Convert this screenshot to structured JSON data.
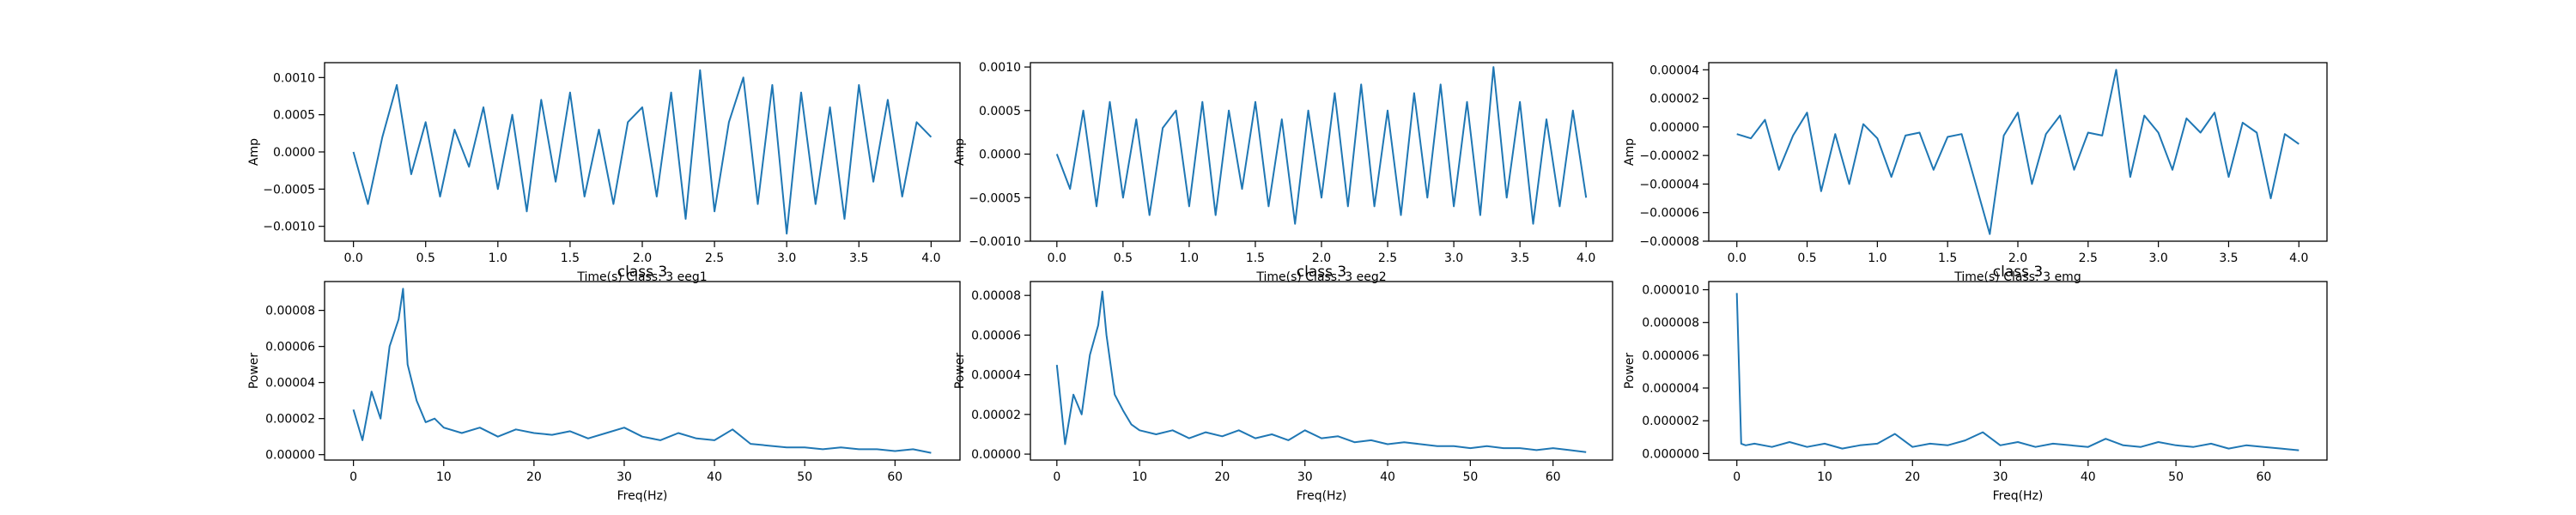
{
  "chart_data": [
    {
      "type": "line",
      "panel": "eeg1-time",
      "title": "",
      "xlabel": "Time(s) Class: 3 eeg1",
      "ylabel": "Amp",
      "xlim": [
        -0.2,
        4.2
      ],
      "ylim": [
        -0.0012,
        0.0012
      ],
      "xticks": [
        0,
        0.5,
        1,
        1.5,
        2,
        2.5,
        3,
        3.5,
        4
      ],
      "xticklabels": [
        "0.0",
        "0.5",
        "1.0",
        "1.5",
        "2.0",
        "2.5",
        "3.0",
        "3.5",
        "4.0"
      ],
      "yticks": [
        -0.001,
        -0.0005,
        0,
        0.0005,
        0.001
      ],
      "yticklabels": [
        "−0.0010",
        "−0.0005",
        "0.0000",
        "0.0005",
        "0.0010"
      ],
      "color": "#1f77b4",
      "series": [
        {
          "x": [
            0,
            0.1,
            0.2,
            0.3,
            0.4,
            0.5,
            0.6,
            0.7,
            0.8,
            0.9,
            1.0,
            1.1,
            1.2,
            1.3,
            1.4,
            1.5,
            1.6,
            1.7,
            1.8,
            1.9,
            2.0,
            2.1,
            2.2,
            2.3,
            2.4,
            2.5,
            2.6,
            2.7,
            2.8,
            2.9,
            3.0,
            3.1,
            3.2,
            3.3,
            3.4,
            3.5,
            3.6,
            3.7,
            3.8,
            3.9,
            4.0
          ],
          "y": [
            0.0,
            -0.0007,
            0.0002,
            0.0009,
            -0.0003,
            0.0004,
            -0.0006,
            0.0003,
            -0.0002,
            0.0006,
            -0.0005,
            0.0005,
            -0.0008,
            0.0007,
            -0.0004,
            0.0008,
            -0.0006,
            0.0003,
            -0.0007,
            0.0004,
            0.0006,
            -0.0006,
            0.0008,
            -0.0009,
            0.0011,
            -0.0008,
            0.0004,
            0.001,
            -0.0007,
            0.0009,
            -0.0011,
            0.0008,
            -0.0007,
            0.0006,
            -0.0009,
            0.0009,
            -0.0004,
            0.0007,
            -0.0006,
            0.0004,
            0.0002
          ]
        }
      ]
    },
    {
      "type": "line",
      "panel": "eeg2-time",
      "title": "",
      "xlabel": "Time(s) Class: 3 eeg2",
      "ylabel": "Amp",
      "xlim": [
        -0.2,
        4.2
      ],
      "ylim": [
        -0.001,
        0.00105
      ],
      "xticks": [
        0,
        0.5,
        1,
        1.5,
        2,
        2.5,
        3,
        3.5,
        4
      ],
      "xticklabels": [
        "0.0",
        "0.5",
        "1.0",
        "1.5",
        "2.0",
        "2.5",
        "3.0",
        "3.5",
        "4.0"
      ],
      "yticks": [
        -0.001,
        -0.0005,
        0,
        0.0005,
        0.001
      ],
      "yticklabels": [
        "−0.0010",
        "−0.0005",
        "0.0000",
        "0.0005",
        "0.0010"
      ],
      "color": "#1f77b4",
      "series": [
        {
          "x": [
            0,
            0.1,
            0.2,
            0.3,
            0.4,
            0.5,
            0.6,
            0.7,
            0.8,
            0.9,
            1.0,
            1.1,
            1.2,
            1.3,
            1.4,
            1.5,
            1.6,
            1.7,
            1.8,
            1.9,
            2.0,
            2.1,
            2.2,
            2.3,
            2.4,
            2.5,
            2.6,
            2.7,
            2.8,
            2.9,
            3.0,
            3.1,
            3.2,
            3.3,
            3.4,
            3.5,
            3.6,
            3.7,
            3.8,
            3.9,
            4.0
          ],
          "y": [
            0.0,
            -0.0004,
            0.0005,
            -0.0006,
            0.0006,
            -0.0005,
            0.0004,
            -0.0007,
            0.0003,
            0.0005,
            -0.0006,
            0.0006,
            -0.0007,
            0.0005,
            -0.0004,
            0.0006,
            -0.0006,
            0.0004,
            -0.0008,
            0.0005,
            -0.0005,
            0.0007,
            -0.0006,
            0.0008,
            -0.0006,
            0.0005,
            -0.0007,
            0.0007,
            -0.0005,
            0.0008,
            -0.0006,
            0.0006,
            -0.0007,
            0.001,
            -0.0005,
            0.0006,
            -0.0008,
            0.0004,
            -0.0006,
            0.0005,
            -0.0005
          ]
        }
      ]
    },
    {
      "type": "line",
      "panel": "emg-time",
      "title": "",
      "xlabel": "Time(s) Class: 3 emg",
      "ylabel": "Amp",
      "xlim": [
        -0.2,
        4.2
      ],
      "ylim": [
        -8e-05,
        4.5e-05
      ],
      "xticks": [
        0,
        0.5,
        1,
        1.5,
        2,
        2.5,
        3,
        3.5,
        4
      ],
      "xticklabels": [
        "0.0",
        "0.5",
        "1.0",
        "1.5",
        "2.0",
        "2.5",
        "3.0",
        "3.5",
        "4.0"
      ],
      "yticks": [
        -8e-05,
        -6e-05,
        -4e-05,
        -2e-05,
        0,
        2e-05,
        4e-05
      ],
      "yticklabels": [
        "−0.00008",
        "−0.00006",
        "−0.00004",
        "−0.00002",
        "0.00000",
        "0.00002",
        "0.00004"
      ],
      "color": "#1f77b4",
      "series": [
        {
          "x": [
            0,
            0.1,
            0.2,
            0.3,
            0.4,
            0.5,
            0.6,
            0.7,
            0.8,
            0.9,
            1.0,
            1.1,
            1.2,
            1.3,
            1.4,
            1.5,
            1.6,
            1.7,
            1.8,
            1.9,
            2.0,
            2.1,
            2.2,
            2.3,
            2.4,
            2.5,
            2.6,
            2.7,
            2.8,
            2.9,
            3.0,
            3.1,
            3.2,
            3.3,
            3.4,
            3.5,
            3.6,
            3.7,
            3.8,
            3.9,
            4.0
          ],
          "y": [
            -5e-06,
            -8e-06,
            5e-06,
            -3e-05,
            -6e-06,
            1e-05,
            -4.5e-05,
            -5e-06,
            -4e-05,
            2e-06,
            -8e-06,
            -3.5e-05,
            -6e-06,
            -4e-06,
            -3e-05,
            -7e-06,
            -5e-06,
            -4e-05,
            -7.5e-05,
            -6e-06,
            1e-05,
            -4e-05,
            -5e-06,
            8e-06,
            -3e-05,
            -4e-06,
            -6e-06,
            4e-05,
            -3.5e-05,
            8e-06,
            -4e-06,
            -3e-05,
            6e-06,
            -4e-06,
            1e-05,
            -3.5e-05,
            3e-06,
            -4e-06,
            -5e-05,
            -5e-06,
            -1.2e-05
          ]
        }
      ]
    },
    {
      "type": "line",
      "panel": "eeg1-psd",
      "title": "class 3",
      "xlabel": "Freq(Hz)",
      "ylabel": "Power",
      "xlim": [
        -3.2,
        67.2
      ],
      "ylim": [
        -3e-06,
        9.6e-05
      ],
      "xticks": [
        0,
        10,
        20,
        30,
        40,
        50,
        60
      ],
      "xticklabels": [
        "0",
        "10",
        "20",
        "30",
        "40",
        "50",
        "60"
      ],
      "yticks": [
        0,
        2e-05,
        4e-05,
        6e-05,
        8e-05
      ],
      "yticklabels": [
        "0.00000",
        "0.00002",
        "0.00004",
        "0.00006",
        "0.00008"
      ],
      "color": "#1f77b4",
      "series": [
        {
          "x": [
            0,
            1,
            2,
            3,
            4,
            5,
            5.5,
            6,
            7,
            8,
            9,
            10,
            12,
            14,
            16,
            18,
            20,
            22,
            24,
            26,
            28,
            30,
            32,
            34,
            36,
            38,
            40,
            42,
            44,
            46,
            48,
            50,
            52,
            54,
            56,
            58,
            60,
            62,
            64
          ],
          "y": [
            2.5e-05,
            8e-06,
            3.5e-05,
            2e-05,
            6e-05,
            7.5e-05,
            9.2e-05,
            5e-05,
            3e-05,
            1.8e-05,
            2e-05,
            1.5e-05,
            1.2e-05,
            1.5e-05,
            1e-05,
            1.4e-05,
            1.2e-05,
            1.1e-05,
            1.3e-05,
            9e-06,
            1.2e-05,
            1.5e-05,
            1e-05,
            8e-06,
            1.2e-05,
            9e-06,
            8e-06,
            1.4e-05,
            6e-06,
            5e-06,
            4e-06,
            4e-06,
            3e-06,
            4e-06,
            3e-06,
            3e-06,
            2e-06,
            3e-06,
            1e-06
          ]
        }
      ]
    },
    {
      "type": "line",
      "panel": "eeg2-psd",
      "title": "class 3",
      "xlabel": "Freq(Hz)",
      "ylabel": "Power",
      "xlim": [
        -3.2,
        67.2
      ],
      "ylim": [
        -3e-06,
        8.7e-05
      ],
      "xticks": [
        0,
        10,
        20,
        30,
        40,
        50,
        60
      ],
      "xticklabels": [
        "0",
        "10",
        "20",
        "30",
        "40",
        "50",
        "60"
      ],
      "yticks": [
        0,
        2e-05,
        4e-05,
        6e-05,
        8e-05
      ],
      "yticklabels": [
        "0.00000",
        "0.00002",
        "0.00004",
        "0.00006",
        "0.00008"
      ],
      "color": "#1f77b4",
      "series": [
        {
          "x": [
            0,
            1,
            2,
            3,
            4,
            5,
            5.5,
            6,
            7,
            8,
            9,
            10,
            12,
            14,
            16,
            18,
            20,
            22,
            24,
            26,
            28,
            30,
            32,
            34,
            36,
            38,
            40,
            42,
            44,
            46,
            48,
            50,
            52,
            54,
            56,
            58,
            60,
            62,
            64
          ],
          "y": [
            4.5e-05,
            5e-06,
            3e-05,
            2e-05,
            5e-05,
            6.5e-05,
            8.2e-05,
            6e-05,
            3e-05,
            2.2e-05,
            1.5e-05,
            1.2e-05,
            1e-05,
            1.2e-05,
            8e-06,
            1.1e-05,
            9e-06,
            1.2e-05,
            8e-06,
            1e-05,
            7e-06,
            1.2e-05,
            8e-06,
            9e-06,
            6e-06,
            7e-06,
            5e-06,
            6e-06,
            5e-06,
            4e-06,
            4e-06,
            3e-06,
            4e-06,
            3e-06,
            3e-06,
            2e-06,
            3e-06,
            2e-06,
            1e-06
          ]
        }
      ]
    },
    {
      "type": "line",
      "panel": "emg-psd",
      "title": "class 3",
      "xlabel": "Freq(Hz)",
      "ylabel": "Power",
      "xlim": [
        -3.2,
        67.2
      ],
      "ylim": [
        -4e-07,
        1.05e-05
      ],
      "xticks": [
        0,
        10,
        20,
        30,
        40,
        50,
        60
      ],
      "xticklabels": [
        "0",
        "10",
        "20",
        "30",
        "40",
        "50",
        "60"
      ],
      "yticks": [
        0,
        2e-06,
        4e-06,
        6e-06,
        8e-06,
        1e-05
      ],
      "yticklabels": [
        "0.000000",
        "0.000002",
        "0.000004",
        "0.000006",
        "0.000008",
        "0.000010"
      ],
      "color": "#1f77b4",
      "series": [
        {
          "x": [
            0,
            0.5,
            1,
            2,
            4,
            6,
            8,
            10,
            12,
            14,
            16,
            18,
            20,
            22,
            24,
            26,
            28,
            30,
            32,
            34,
            36,
            38,
            40,
            42,
            44,
            46,
            48,
            50,
            52,
            54,
            56,
            58,
            60,
            62,
            64
          ],
          "y": [
            9.8e-06,
            6e-07,
            5e-07,
            6e-07,
            4e-07,
            7e-07,
            4e-07,
            6e-07,
            3e-07,
            5e-07,
            6e-07,
            1.2e-06,
            4e-07,
            6e-07,
            5e-07,
            8e-07,
            1.3e-06,
            5e-07,
            7e-07,
            4e-07,
            6e-07,
            5e-07,
            4e-07,
            9e-07,
            5e-07,
            4e-07,
            7e-07,
            5e-07,
            4e-07,
            6e-07,
            3e-07,
            5e-07,
            4e-07,
            3e-07,
            2e-07
          ]
        }
      ]
    }
  ]
}
